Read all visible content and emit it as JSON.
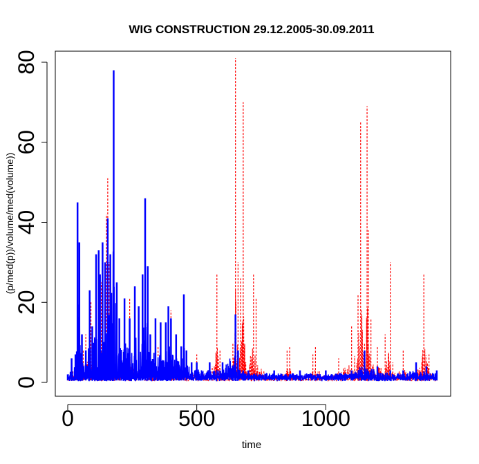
{
  "chart_data": {
    "type": "line",
    "title": "WIG CONSTRUCTION 29.12.2005-30.09.2011",
    "xlabel": "time",
    "ylabel": "(p/med(p))/volume/med(volume))",
    "xlim": [
      0,
      1450
    ],
    "ylim": [
      0,
      80
    ],
    "xticks": [
      0,
      500,
      1000
    ],
    "yticks": [
      0,
      20,
      40,
      60,
      80
    ],
    "grid": false,
    "legend": "none",
    "series": [
      {
        "color": "#ff0000",
        "style": "dashed",
        "x": [
          0,
          20,
          40,
          60,
          70,
          90,
          110,
          130,
          150,
          155,
          160,
          170,
          180,
          200,
          240,
          260,
          300,
          350,
          400,
          450,
          500,
          540,
          560,
          578,
          590,
          600,
          640,
          650,
          660,
          670,
          680,
          690,
          720,
          730,
          760,
          800,
          850,
          860,
          900,
          950,
          960,
          1000,
          1050,
          1100,
          1125,
          1135,
          1150,
          1160,
          1165,
          1175,
          1200,
          1230,
          1250,
          1260,
          1300,
          1350,
          1380,
          1400,
          1430
        ],
        "values": [
          1,
          3,
          4,
          8,
          12,
          20,
          10,
          25,
          42,
          51,
          30,
          14,
          10,
          5,
          21,
          8,
          3,
          9,
          18,
          10,
          7,
          3,
          4,
          27,
          8,
          3,
          10,
          81,
          30,
          26,
          70,
          5,
          27,
          21,
          3,
          2,
          8,
          9,
          1,
          7,
          9,
          3,
          6,
          14,
          22,
          65,
          10,
          69,
          38,
          16,
          9,
          12,
          30,
          5,
          8,
          3,
          27,
          7,
          2
        ]
      },
      {
        "color": "#0000ff",
        "style": "solid",
        "x": [
          0,
          15,
          30,
          38,
          45,
          55,
          70,
          85,
          95,
          110,
          120,
          125,
          135,
          145,
          155,
          165,
          178,
          190,
          200,
          220,
          240,
          260,
          275,
          290,
          300,
          310,
          320,
          340,
          360,
          380,
          390,
          400,
          420,
          440,
          450,
          460,
          480,
          500,
          550,
          600,
          650,
          660,
          680,
          700,
          800,
          900,
          1000,
          1100,
          1150,
          1200,
          1250,
          1300,
          1350,
          1390,
          1430
        ],
        "values": [
          2,
          6,
          7,
          45,
          35,
          12,
          8,
          23,
          14,
          32,
          33,
          27,
          35,
          30,
          41,
          32,
          78,
          25,
          16,
          21,
          16,
          24,
          19,
          27,
          46,
          29,
          12,
          16,
          15,
          15,
          19,
          16,
          12,
          9,
          22,
          8,
          5,
          5,
          5,
          5,
          17,
          8,
          3,
          3,
          3,
          3,
          3,
          3,
          8,
          4,
          3,
          3,
          5,
          4,
          3
        ]
      }
    ]
  }
}
